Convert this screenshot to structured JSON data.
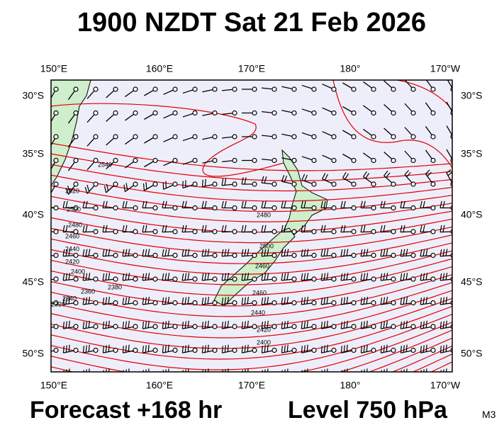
{
  "title": "1900 NZDT Sat 21 Feb 2026",
  "map": {
    "lon_labels": [
      "150°E",
      "160°E",
      "170°E",
      "180°",
      "170°W"
    ],
    "lat_labels": [
      "30°S",
      "35°S",
      "40°S",
      "45°S",
      "50°S"
    ],
    "contour_labels": [
      "2540",
      "2520",
      "2500",
      "2480",
      "2460",
      "2440",
      "2420",
      "2400",
      "2380",
      "2360",
      "2340",
      "2320",
      "2500",
      "2480",
      "2460",
      "2440",
      "2420",
      "2400",
      "2460"
    ]
  },
  "footer": {
    "forecast": "Forecast +168 hr",
    "level": "Level 750 hPa",
    "code": "M3"
  }
}
